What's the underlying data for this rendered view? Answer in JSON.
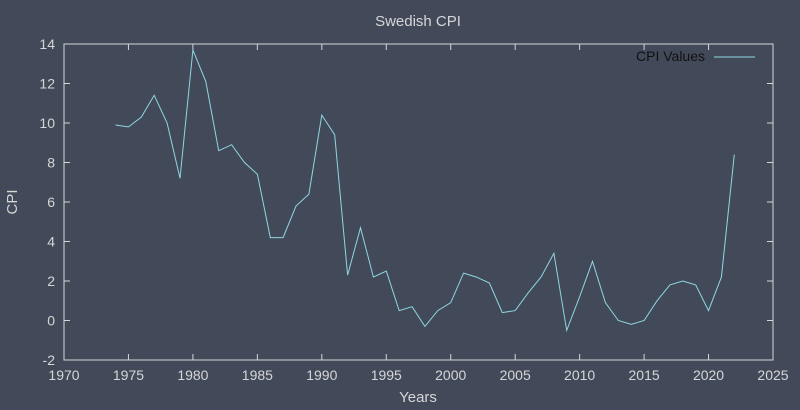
{
  "chart_data": {
    "type": "line",
    "title": "Swedish CPI",
    "xlabel": "Years",
    "ylabel": "CPI",
    "xlim": [
      1970,
      2025
    ],
    "ylim": [
      -2,
      14
    ],
    "xticks": [
      1970,
      1975,
      1980,
      1985,
      1990,
      1995,
      2000,
      2005,
      2010,
      2015,
      2020,
      2025
    ],
    "yticks": [
      -2,
      0,
      2,
      4,
      6,
      8,
      10,
      12,
      14
    ],
    "grid": false,
    "legend_position": "top-right",
    "colors": {
      "background": "#424a5a",
      "axes": "#d6d6d6",
      "line": "#8fd6e0",
      "text": "#d6d6d6"
    },
    "series": [
      {
        "name": "CPI Values",
        "x": [
          1974,
          1975,
          1976,
          1977,
          1978,
          1979,
          1980,
          1981,
          1982,
          1983,
          1984,
          1985,
          1986,
          1987,
          1988,
          1989,
          1990,
          1991,
          1992,
          1993,
          1994,
          1995,
          1996,
          1997,
          1998,
          1999,
          2000,
          2001,
          2002,
          2003,
          2004,
          2005,
          2006,
          2007,
          2008,
          2009,
          2010,
          2011,
          2012,
          2013,
          2014,
          2015,
          2016,
          2017,
          2018,
          2019,
          2020,
          2021,
          2022
        ],
        "y": [
          9.9,
          9.8,
          10.3,
          11.4,
          10.0,
          7.2,
          13.7,
          12.1,
          8.6,
          8.9,
          8.0,
          7.4,
          4.2,
          4.2,
          5.8,
          6.4,
          10.4,
          9.4,
          2.3,
          4.7,
          2.2,
          2.5,
          0.5,
          0.7,
          -0.3,
          0.5,
          0.9,
          2.4,
          2.2,
          1.9,
          0.4,
          0.5,
          1.4,
          2.2,
          3.4,
          -0.5,
          1.2,
          3.0,
          0.9,
          0.0,
          -0.2,
          0.0,
          1.0,
          1.8,
          2.0,
          1.8,
          0.5,
          2.2,
          8.4
        ]
      }
    ]
  }
}
